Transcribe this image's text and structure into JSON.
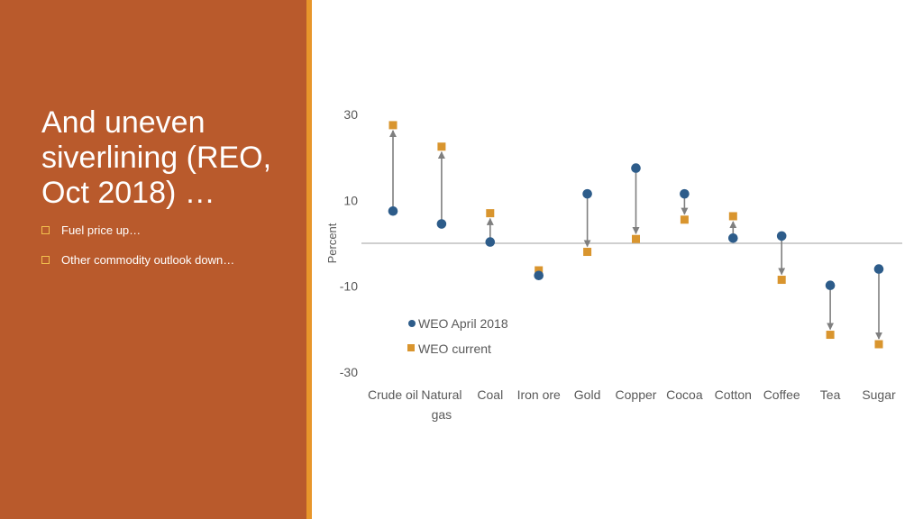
{
  "slide": {
    "title": "And uneven siverlining (REO, Oct 2018) …",
    "bullets": [
      "Fuel price up…",
      "Other commodity outlook down…"
    ]
  },
  "colors": {
    "panel": "#b95a2c",
    "accent": "#e8962b",
    "april_series": "#2d5c8a",
    "current_series": "#d9952e",
    "arrow": "#7f7f7f"
  },
  "chart_data": {
    "type": "scatter",
    "title": "",
    "ylabel": "Percent",
    "ylim": [
      -30,
      30
    ],
    "yticks": [
      30,
      10,
      -10,
      -30
    ],
    "categories": [
      "Crude oil",
      "Natural gas",
      "Coal",
      "Iron ore",
      "Gold",
      "Copper",
      "Cocoa",
      "Cotton",
      "Coffee",
      "Tea",
      "Sugar"
    ],
    "category_lines": [
      [
        "Crude oil"
      ],
      [
        "Natural",
        "gas"
      ],
      [
        "Coal"
      ],
      [
        "Iron ore"
      ],
      [
        "Gold"
      ],
      [
        "Copper"
      ],
      [
        "Cocoa"
      ],
      [
        "Cotton"
      ],
      [
        "Coffee"
      ],
      [
        "Tea"
      ],
      [
        "Sugar"
      ]
    ],
    "series": [
      {
        "name": "WEO April 2018",
        "marker": "circle",
        "values": [
          7.5,
          4.5,
          0.3,
          -7.5,
          11.5,
          17.5,
          11.5,
          1.2,
          1.7,
          -9.8,
          -6.0
        ]
      },
      {
        "name": "WEO current",
        "marker": "square",
        "values": [
          27.5,
          22.5,
          7.0,
          -6.3,
          -2.0,
          1.0,
          5.5,
          6.3,
          -8.5,
          -21.3,
          -23.5
        ]
      }
    ],
    "legend_position": "lower-left",
    "grid": false
  }
}
